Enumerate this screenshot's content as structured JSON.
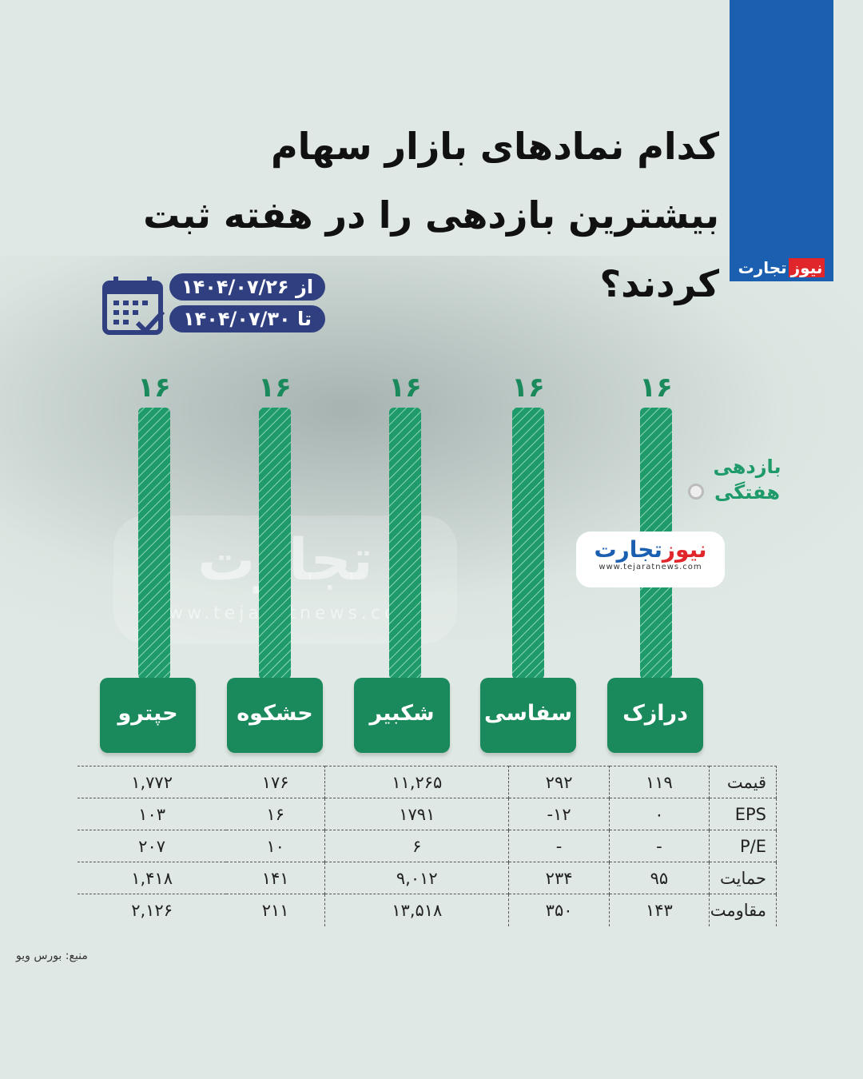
{
  "brand": {
    "logo_part1": "تجارت",
    "logo_part2": "نیوز",
    "url": "www.tejaratnews.com",
    "color": "#1a5fb0"
  },
  "title": {
    "line1": "کدام نمادهای بازار سهام",
    "line2": "بیشترین بازدهی را در هفته ثبت کردند؟"
  },
  "dates": {
    "from": "از ۱۴۰۴/۰۷/۲۶",
    "to": "تا ۱۴۰۴/۰۷/۳۰"
  },
  "chart_data": {
    "type": "bar",
    "categories": [
      "درازک",
      "سفاسی",
      "شکبیر",
      "حشکوه",
      "حپترو"
    ],
    "values": [
      16,
      16,
      16,
      16,
      16
    ],
    "data_labels": [
      "۱۶",
      "۱۶",
      "۱۶",
      "۱۶",
      "۱۶"
    ],
    "ylabel": "بازدهی هفتگی",
    "direction": "rtl",
    "bar_color": "#1f9a6a"
  },
  "table": {
    "rows": [
      {
        "label": "قیمت",
        "values": [
          "۱۱۹",
          "۲۹۲",
          "۱۱,۲۶۵",
          "۱۷۶",
          "۱,۷۷۲"
        ]
      },
      {
        "label": "EPS",
        "values": [
          "۰",
          "-۱۲",
          "۱۷۹۱",
          "۱۶",
          "۱۰۳"
        ]
      },
      {
        "label": "P/E",
        "values": [
          "-",
          "-",
          "۶",
          "۱۰",
          "۲۰۷"
        ]
      },
      {
        "label": "حمایت",
        "values": [
          "۹۵",
          "۲۳۴",
          "۹,۰۱۲",
          "۱۴۱",
          "۱,۴۱۸"
        ]
      },
      {
        "label": "مقاومت",
        "values": [
          "۱۴۳",
          "۳۵۰",
          "۱۳,۵۱۸",
          "۲۱۱",
          "۲,۱۲۶"
        ]
      }
    ]
  },
  "source": "منبع: بورس ویو"
}
